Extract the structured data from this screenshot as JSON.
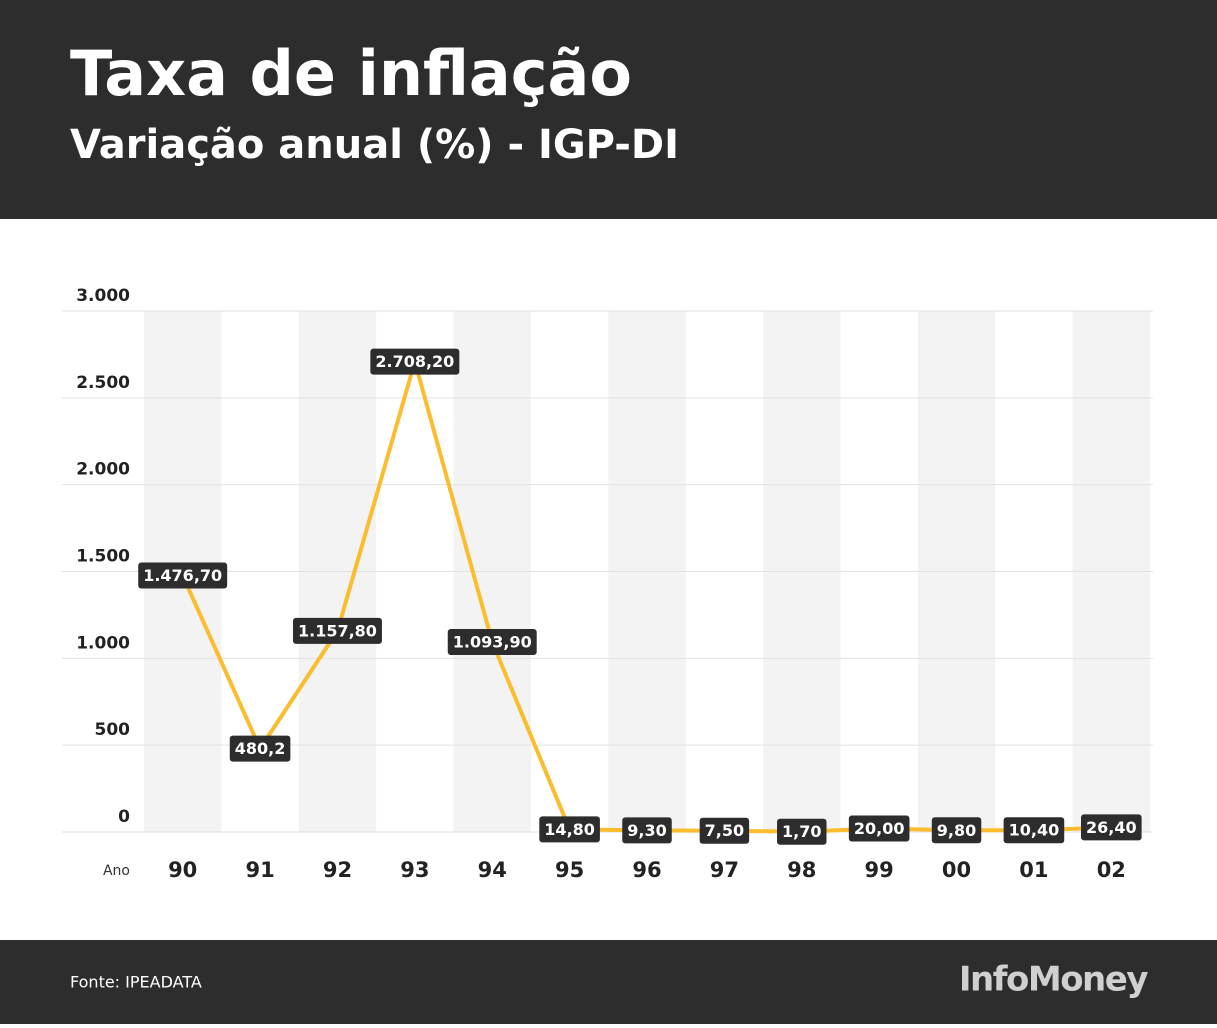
{
  "header": {
    "title": "Taxa de inflação",
    "subtitle": "Variação anual (%) - IGP-DI"
  },
  "chart_data": {
    "type": "line",
    "x_label": "Ano",
    "categories": [
      "90",
      "91",
      "92",
      "93",
      "94",
      "95",
      "96",
      "97",
      "98",
      "99",
      "00",
      "01",
      "02"
    ],
    "values": [
      1476.7,
      480.2,
      1157.8,
      2708.2,
      1093.9,
      14.8,
      9.3,
      7.5,
      1.7,
      20.0,
      9.8,
      10.4,
      26.4
    ],
    "value_labels": [
      "1.476,70",
      "480,2",
      "1.157,80",
      "2.708,20",
      "1.093,90",
      "14,80",
      "9,30",
      "7,50",
      "1,70",
      "20,00",
      "9,80",
      "10,40",
      "26,40"
    ],
    "color": "#fbbd2e",
    "ylim": [
      0,
      3000
    ],
    "yticks": [
      0,
      500,
      {
        "value": 1000,
        "label": "1.000"
      },
      {
        "value": 1500,
        "label": "1.500"
      },
      {
        "value": 2000,
        "label": "2.000"
      },
      {
        "value": 2500,
        "label": "2.500"
      },
      {
        "value": 3000,
        "label": "3.000"
      }
    ],
    "grid": true
  },
  "footer": {
    "source": "Fonte: IPEADATA",
    "brand": "InfoMoney"
  }
}
